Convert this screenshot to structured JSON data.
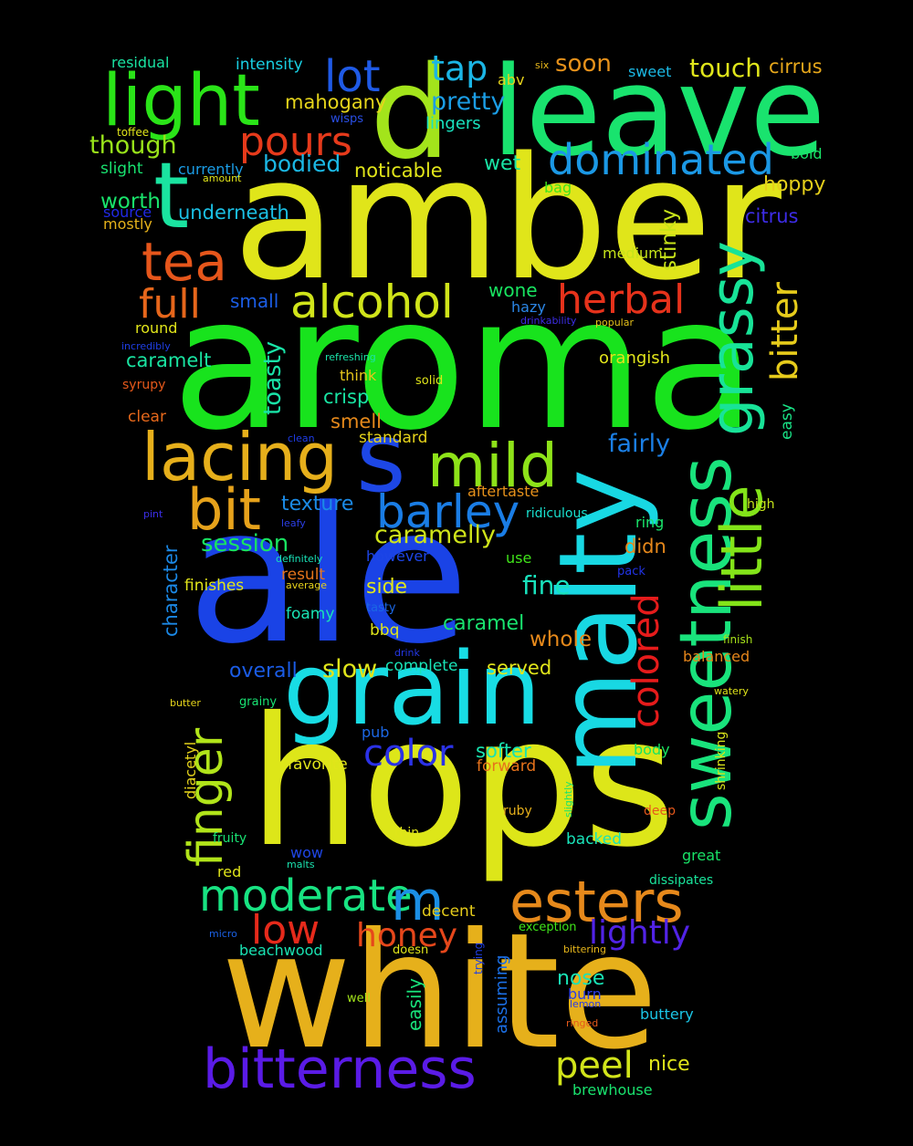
{
  "words": [
    {
      "text": "amber",
      "color": "#e0e51a"
    },
    {
      "text": "aroma",
      "color": "#18e31d"
    },
    {
      "text": "ale",
      "color": "#1a43e6"
    },
    {
      "text": "hops",
      "color": "#dde619"
    },
    {
      "text": "white",
      "color": "#e6b01b"
    },
    {
      "text": "leave",
      "color": "#19e36e"
    },
    {
      "text": "malty",
      "color": "#18d8e3"
    },
    {
      "text": "grain",
      "color": "#18dce4"
    },
    {
      "text": "light",
      "color": "#2ae418"
    },
    {
      "text": "d",
      "color": "#a3e41b"
    },
    {
      "text": "t",
      "color": "#1ae3a0"
    },
    {
      "text": "s",
      "color": "#1d47e6"
    },
    {
      "text": "sweetness",
      "color": "#19e37c"
    },
    {
      "text": "little",
      "color": "#83e419"
    },
    {
      "text": "grassy",
      "color": "#18e398"
    },
    {
      "text": "lacing",
      "color": "#e6af1b"
    },
    {
      "text": "mild",
      "color": "#8ee319"
    },
    {
      "text": "bit",
      "color": "#e6a21b"
    },
    {
      "text": "barley",
      "color": "#1a7de5"
    },
    {
      "text": "esters",
      "color": "#e6891b"
    },
    {
      "text": "bitterness",
      "color": "#5a1be6"
    },
    {
      "text": "finger",
      "color": "#b1e41a"
    },
    {
      "text": "moderate",
      "color": "#18e382"
    },
    {
      "text": "m",
      "color": "#1b8fe5"
    },
    {
      "text": "tea",
      "color": "#e6561b"
    },
    {
      "text": "alcohol",
      "color": "#d0e41a"
    },
    {
      "text": "herbal",
      "color": "#e6321b"
    },
    {
      "text": "dominated",
      "color": "#1b98e5"
    },
    {
      "text": "pours",
      "color": "#e63a1b"
    },
    {
      "text": "lot",
      "color": "#1f5ae6"
    },
    {
      "text": "full",
      "color": "#e6661b"
    },
    {
      "text": "colored",
      "color": "#e61b1b"
    },
    {
      "text": "bitter",
      "color": "#e6cb1b"
    },
    {
      "text": "color",
      "color": "#2b32e6"
    },
    {
      "text": "low",
      "color": "#e62a1b"
    },
    {
      "text": "honey",
      "color": "#e6471b"
    },
    {
      "text": "peel",
      "color": "#d1e41a"
    },
    {
      "text": "lightly",
      "color": "#5123e6"
    },
    {
      "text": "tap",
      "color": "#1bb5e5"
    },
    {
      "text": "soon",
      "color": "#e6911b"
    },
    {
      "text": "touch",
      "color": "#e0e61b"
    },
    {
      "text": "cirrus",
      "color": "#e6a71b"
    },
    {
      "text": "pretty",
      "color": "#1b9de5"
    },
    {
      "text": "mahogany",
      "color": "#e6d51b"
    },
    {
      "text": "lingers",
      "color": "#19e3bf"
    },
    {
      "text": "though",
      "color": "#98e31a"
    },
    {
      "text": "bodied",
      "color": "#1bb8e5"
    },
    {
      "text": "noticable",
      "color": "#e1e51a"
    },
    {
      "text": "wet",
      "color": "#19e3a5"
    },
    {
      "text": "residual",
      "color": "#19e3a2"
    },
    {
      "text": "intensity",
      "color": "#19d0e3"
    },
    {
      "text": "abv",
      "color": "#e6d31b"
    },
    {
      "text": "six",
      "color": "#e6b61b"
    },
    {
      "text": "sweet",
      "color": "#1bb9e5"
    },
    {
      "text": "wisps",
      "color": "#2a4fe6"
    },
    {
      "text": "toffee",
      "color": "#e0e51a"
    },
    {
      "text": "slight",
      "color": "#19e370"
    },
    {
      "text": "currently",
      "color": "#1b9ce5"
    },
    {
      "text": "amount",
      "color": "#e1e51a"
    },
    {
      "text": "bold",
      "color": "#19e367"
    },
    {
      "text": "worth",
      "color": "#19e36b"
    },
    {
      "text": "source",
      "color": "#2129e6"
    },
    {
      "text": "underneath",
      "color": "#1bc0e5"
    },
    {
      "text": "mostly",
      "color": "#e6b21b"
    },
    {
      "text": "hoppy",
      "color": "#e6d01b"
    },
    {
      "text": "bag",
      "color": "#40e41a"
    },
    {
      "text": "stinky",
      "color": "#c8e41a"
    },
    {
      "text": "citrus",
      "color": "#3d2ce6"
    },
    {
      "text": "medium",
      "color": "#c6e41a"
    },
    {
      "text": "wone",
      "color": "#18e360"
    },
    {
      "text": "small",
      "color": "#1b5de5"
    },
    {
      "text": "hazy",
      "color": "#2b86e6"
    },
    {
      "text": "round",
      "color": "#e1e51a"
    },
    {
      "text": "drinkability",
      "color": "#3c2de6"
    },
    {
      "text": "popular",
      "color": "#e6c11b"
    },
    {
      "text": "incredibly",
      "color": "#1f3fe6"
    },
    {
      "text": "refreshing",
      "color": "#1be3a9"
    },
    {
      "text": "caramelt",
      "color": "#19e3a1"
    },
    {
      "text": "toasty",
      "color": "#19e3a7"
    },
    {
      "text": "orangish",
      "color": "#e1e51a"
    },
    {
      "text": "think",
      "color": "#e6c61b"
    },
    {
      "text": "solid",
      "color": "#e0e51a"
    },
    {
      "text": "syrupy",
      "color": "#e6591b"
    },
    {
      "text": "crisp",
      "color": "#19e3a2"
    },
    {
      "text": "easy",
      "color": "#19e387"
    },
    {
      "text": "clear",
      "color": "#e6681b"
    },
    {
      "text": "smell",
      "color": "#e6891b"
    },
    {
      "text": "clean",
      "color": "#1f3de6"
    },
    {
      "text": "standard",
      "color": "#e6d31b"
    },
    {
      "text": "fairly",
      "color": "#1b7fe5"
    },
    {
      "text": "texture",
      "color": "#1b8ae5"
    },
    {
      "text": "aftertaste",
      "color": "#e6911b"
    },
    {
      "text": "pint",
      "color": "#3b2ee6"
    },
    {
      "text": "leafy",
      "color": "#2b3ee6"
    },
    {
      "text": "ridiculous",
      "color": "#19e3d1"
    },
    {
      "text": "high",
      "color": "#c5e41a"
    },
    {
      "text": "caramelly",
      "color": "#cfe41a"
    },
    {
      "text": "session",
      "color": "#19e361"
    },
    {
      "text": "ring",
      "color": "#19e36a"
    },
    {
      "text": "didn",
      "color": "#e6881b"
    },
    {
      "text": "character",
      "color": "#1b88e5"
    },
    {
      "text": "definitely",
      "color": "#19e3b8"
    },
    {
      "text": "however",
      "color": "#1d45e6"
    },
    {
      "text": "use",
      "color": "#40e41a"
    },
    {
      "text": "pack",
      "color": "#2133e6"
    },
    {
      "text": "finishes",
      "color": "#e1e51a"
    },
    {
      "text": "result",
      "color": "#e6751b"
    },
    {
      "text": "average",
      "color": "#e6d11b"
    },
    {
      "text": "side",
      "color": "#e1e51a"
    },
    {
      "text": "fine",
      "color": "#19e3bd"
    },
    {
      "text": "tasty",
      "color": "#1b67e5"
    },
    {
      "text": "foamy",
      "color": "#19e3b5"
    },
    {
      "text": "caramel",
      "color": "#19e36f"
    },
    {
      "text": "bbq",
      "color": "#e0e51a"
    },
    {
      "text": "whole",
      "color": "#e6891b"
    },
    {
      "text": "finish",
      "color": "#a7e41a"
    },
    {
      "text": "drink",
      "color": "#2437e6"
    },
    {
      "text": "overall",
      "color": "#1b5ce5"
    },
    {
      "text": "slow",
      "color": "#e0e51a"
    },
    {
      "text": "complete",
      "color": "#19e3b7"
    },
    {
      "text": "served",
      "color": "#e1e51a"
    },
    {
      "text": "balanced",
      "color": "#e6861b"
    },
    {
      "text": "butter",
      "color": "#e6d51b"
    },
    {
      "text": "grainy",
      "color": "#19e373"
    },
    {
      "text": "watery",
      "color": "#e1e51a"
    },
    {
      "text": "pub",
      "color": "#1b67e5"
    },
    {
      "text": "softer",
      "color": "#19e3b0"
    },
    {
      "text": "forward",
      "color": "#e6721b"
    },
    {
      "text": "body",
      "color": "#19e361"
    },
    {
      "text": "shrinking",
      "color": "#dbe51a"
    },
    {
      "text": "diacetyl",
      "color": "#e6d41b"
    },
    {
      "text": "favorite",
      "color": "#e1e51a"
    },
    {
      "text": "slightly",
      "color": "#19e36b"
    },
    {
      "text": "ruby",
      "color": "#e6b01b"
    },
    {
      "text": "deep",
      "color": "#e6581b"
    },
    {
      "text": "thin",
      "color": "#e0e51a"
    },
    {
      "text": "backed",
      "color": "#19e3b9"
    },
    {
      "text": "fruity",
      "color": "#19e374"
    },
    {
      "text": "wow",
      "color": "#1f46e6"
    },
    {
      "text": "malts",
      "color": "#1be3b0"
    },
    {
      "text": "great",
      "color": "#19e367"
    },
    {
      "text": "red",
      "color": "#e0e51a"
    },
    {
      "text": "dissipates",
      "color": "#19e39a"
    },
    {
      "text": "decent",
      "color": "#e6cc1b"
    },
    {
      "text": "micro",
      "color": "#1b61e5"
    },
    {
      "text": "assuming",
      "color": "#1b6fe5"
    },
    {
      "text": "trying",
      "color": "#1f3fe6"
    },
    {
      "text": "exception",
      "color": "#40e41a"
    },
    {
      "text": "bittering",
      "color": "#e6b61b"
    },
    {
      "text": "beachwood",
      "color": "#19e3b3"
    },
    {
      "text": "doesn",
      "color": "#e0e51a"
    },
    {
      "text": "nose",
      "color": "#19e3b5"
    },
    {
      "text": "easily",
      "color": "#19e37b"
    },
    {
      "text": "burn",
      "color": "#2b3ee6"
    },
    {
      "text": "lemon",
      "color": "#2b3ee6"
    },
    {
      "text": "well",
      "color": "#a3e41a"
    },
    {
      "text": "buttery",
      "color": "#1bc5e5"
    },
    {
      "text": "ringed",
      "color": "#e6591b"
    },
    {
      "text": "nice",
      "color": "#e0e51a"
    },
    {
      "text": "brewhouse",
      "color": "#19e36e"
    }
  ]
}
